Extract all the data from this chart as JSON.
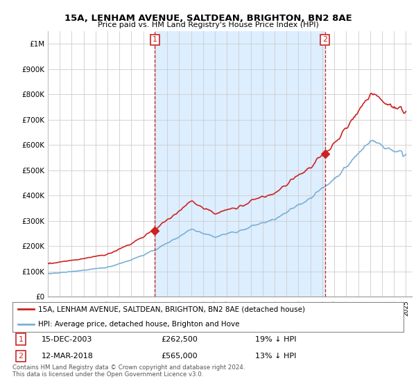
{
  "title1": "15A, LENHAM AVENUE, SALTDEAN, BRIGHTON, BN2 8AE",
  "title2": "Price paid vs. HM Land Registry's House Price Index (HPI)",
  "ylim": [
    0,
    1050000
  ],
  "yticks": [
    0,
    100000,
    200000,
    300000,
    400000,
    500000,
    600000,
    700000,
    800000,
    900000,
    1000000
  ],
  "ytick_labels": [
    "£0",
    "£100K",
    "£200K",
    "£300K",
    "£400K",
    "£500K",
    "£600K",
    "£700K",
    "£800K",
    "£900K",
    "£1M"
  ],
  "hpi_color": "#7bafd4",
  "price_color": "#cc2222",
  "shade_color": "#ddeeff",
  "marker1_year": 2003.96,
  "marker1_price": 262500,
  "marker2_year": 2018.21,
  "marker2_price": 565000,
  "legend_line1": "15A, LENHAM AVENUE, SALTDEAN, BRIGHTON, BN2 8AE (detached house)",
  "legend_line2": "HPI: Average price, detached house, Brighton and Hove",
  "table_row1": [
    "1",
    "15-DEC-2003",
    "£262,500",
    "19% ↓ HPI"
  ],
  "table_row2": [
    "2",
    "12-MAR-2018",
    "£565,000",
    "13% ↓ HPI"
  ],
  "footnote1": "Contains HM Land Registry data © Crown copyright and database right 2024.",
  "footnote2": "This data is licensed under the Open Government Licence v3.0.",
  "bg_color": "#ffffff",
  "grid_color": "#cccccc"
}
